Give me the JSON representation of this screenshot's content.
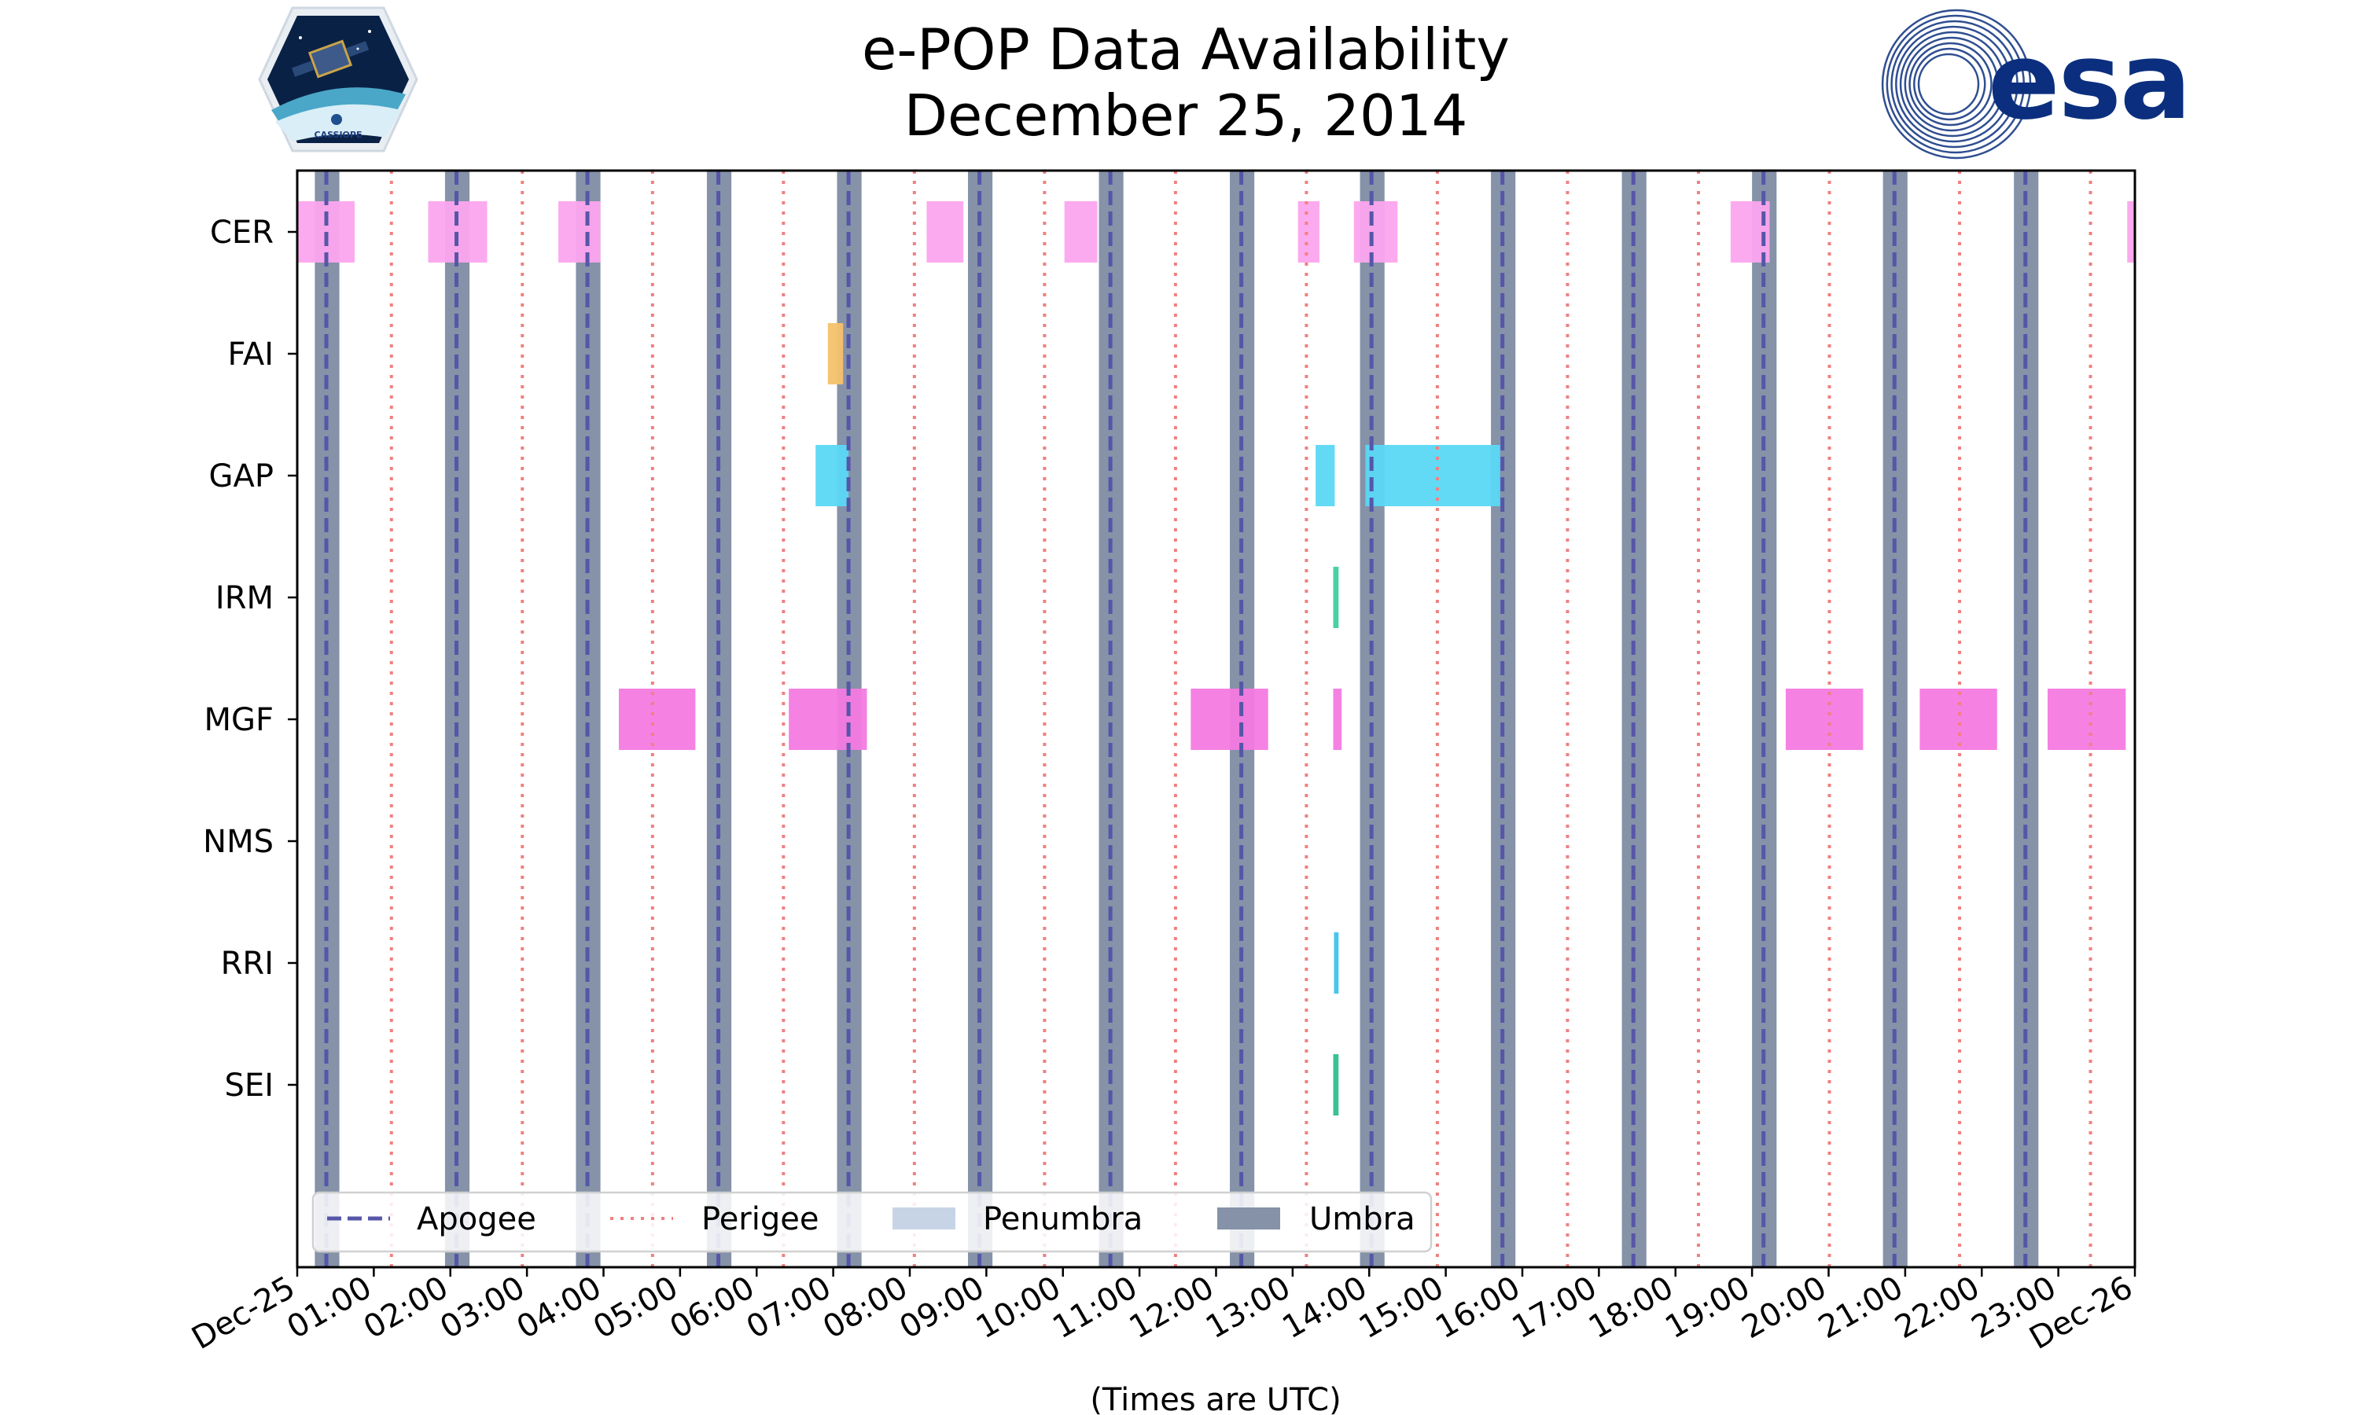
{
  "chart_data": {
    "type": "timeline",
    "title": "e-POP Data Availability",
    "subtitle": "December 25, 2014",
    "xlabel": "(Times are UTC)",
    "x_unit": "hours UTC",
    "xlim": [
      0,
      24
    ],
    "instruments": [
      "CER",
      "FAI",
      "GAP",
      "IRM",
      "MGF",
      "NMS",
      "RRI",
      "SEI"
    ],
    "x_tick_labels": [
      "Dec-25",
      "01:00",
      "02:00",
      "03:00",
      "04:00",
      "05:00",
      "06:00",
      "07:00",
      "08:00",
      "09:00",
      "10:00",
      "11:00",
      "12:00",
      "13:00",
      "14:00",
      "15:00",
      "16:00",
      "17:00",
      "18:00",
      "19:00",
      "20:00",
      "21:00",
      "22:00",
      "23:00",
      "Dec-26"
    ],
    "apogee_hours": [
      0.38,
      2.08,
      3.79,
      5.5,
      7.2,
      8.91,
      10.62,
      12.33,
      14.03,
      15.74,
      17.45,
      19.15,
      20.86,
      22.57
    ],
    "perigee_hours": [
      1.23,
      2.94,
      4.64,
      6.35,
      8.06,
      9.76,
      11.47,
      13.18,
      14.89,
      16.59,
      18.3,
      20.01,
      21.71,
      23.42
    ],
    "umbra_intervals": [
      [
        0.23,
        0.55
      ],
      [
        1.93,
        2.25
      ],
      [
        3.64,
        3.96
      ],
      [
        5.35,
        5.67
      ],
      [
        7.05,
        7.37
      ],
      [
        8.76,
        9.08
      ],
      [
        10.47,
        10.79
      ],
      [
        12.18,
        12.5
      ],
      [
        13.88,
        14.2
      ],
      [
        15.59,
        15.91
      ],
      [
        17.3,
        17.62
      ],
      [
        19.0,
        19.32
      ],
      [
        20.71,
        21.03
      ],
      [
        22.42,
        22.74
      ]
    ],
    "penumbra_intervals": [],
    "availability": {
      "CER": [
        [
          0.0,
          0.75
        ],
        [
          1.71,
          2.48
        ],
        [
          3.41,
          3.96
        ],
        [
          8.22,
          8.7
        ],
        [
          10.02,
          10.45
        ],
        [
          13.07,
          13.35
        ],
        [
          13.8,
          14.37
        ],
        [
          18.72,
          19.23
        ],
        [
          23.9,
          24.0
        ]
      ],
      "FAI": [
        [
          6.93,
          7.13
        ]
      ],
      "GAP": [
        [
          6.77,
          7.2
        ],
        [
          13.3,
          13.55
        ],
        [
          13.95,
          15.71
        ]
      ],
      "IRM": [
        [
          13.53,
          13.6
        ]
      ],
      "MGF": [
        [
          4.2,
          5.2
        ],
        [
          6.42,
          7.44
        ],
        [
          11.67,
          12.68
        ],
        [
          13.53,
          13.64
        ],
        [
          19.44,
          20.45
        ],
        [
          21.19,
          22.2
        ],
        [
          22.86,
          23.88
        ]
      ],
      "NMS": [],
      "RRI": [
        [
          13.54,
          13.6
        ]
      ],
      "SEI": [
        [
          13.53,
          13.6
        ]
      ]
    },
    "colors": {
      "CER": "#fca5ee",
      "FAI": "#f5c26b",
      "GAP": "#5ad8f5",
      "IRM": "#3ecfa0",
      "MGF": "#f47ae2",
      "NMS": "#888888",
      "RRI": "#3cc3ee",
      "SEI": "#2fbf8c",
      "apogee": "#5656a8",
      "perigee": "#f08080",
      "umbra": "#8592a8",
      "penumbra": "#c7d4e6",
      "esa_blue": "#0b2f7e"
    },
    "legend": {
      "placement": "bottom-left",
      "items": [
        {
          "label": "Apogee",
          "key": "apogee"
        },
        {
          "label": "Perigee",
          "key": "perigee"
        },
        {
          "label": "Penumbra",
          "key": "penumbra"
        },
        {
          "label": "Umbra",
          "key": "umbra"
        }
      ]
    },
    "logos": {
      "left": {
        "text": "CASSIOPE",
        "icon": "cassiope-mission-logo-icon"
      },
      "right": {
        "text": "esa",
        "icon": "esa-logo-icon"
      }
    }
  }
}
